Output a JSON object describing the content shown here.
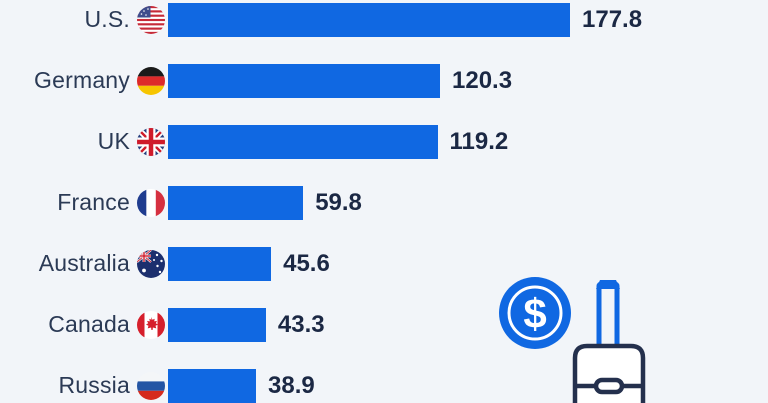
{
  "chart_data": {
    "type": "bar",
    "orientation": "horizontal",
    "title": "",
    "categories": [
      "U.S.",
      "Germany",
      "UK",
      "France",
      "Australia",
      "Canada",
      "Russia"
    ],
    "values": [
      177.8,
      120.3,
      119.2,
      59.8,
      45.6,
      43.3,
      38.9
    ],
    "value_labels": [
      "177.8",
      "120.3",
      "119.2",
      "59.8",
      "45.6",
      "43.3",
      "38.9"
    ],
    "flags": [
      "us",
      "de",
      "uk",
      "fr",
      "au",
      "ca",
      "ru"
    ],
    "max_value": 177.8,
    "axis_visible": false,
    "grid": false,
    "legend": false,
    "bar_color": "#1068e2",
    "background_color": "#f2f5f9",
    "label_color": "#2b3a55",
    "value_color": "#1b2844"
  },
  "decoration": {
    "illustration": "dollar-coin-and-suitcase",
    "coin_symbol": "$",
    "coin_color": "#1068e2",
    "outline_color": "#24304d"
  }
}
